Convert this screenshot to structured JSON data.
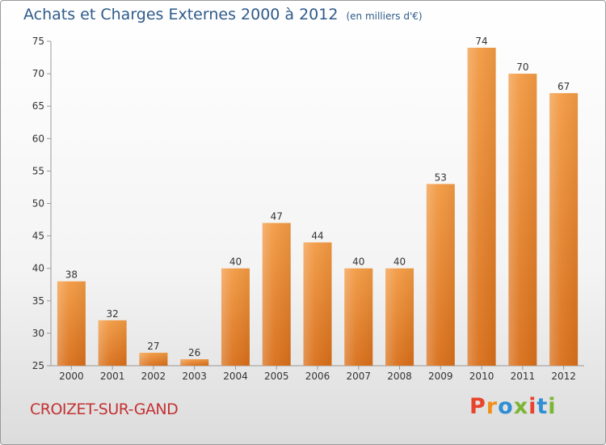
{
  "chart_data": {
    "type": "bar",
    "title": "Achats et Charges Externes 2000 à 2012",
    "subtitle": "(en milliers d'€)",
    "categories": [
      "2000",
      "2001",
      "2002",
      "2003",
      "2004",
      "2005",
      "2006",
      "2007",
      "2008",
      "2009",
      "2010",
      "2011",
      "2012"
    ],
    "values": [
      38,
      32,
      27,
      26,
      40,
      47,
      44,
      40,
      40,
      53,
      74,
      70,
      67
    ],
    "ylim": [
      25,
      75
    ],
    "yticks": [
      25,
      30,
      35,
      40,
      45,
      50,
      55,
      60,
      65,
      70,
      75
    ],
    "xlabel": "",
    "ylabel": "",
    "grid": false,
    "bar_color": "#f29a43",
    "bar_color_dark": "#d86f1a"
  },
  "footer": {
    "commune": "CROIZET-SUR-GAND",
    "logo": "Proxiti",
    "logo_colors": [
      "#e8442d",
      "#f28f1b",
      "#2e8fd4",
      "#7ab534",
      "#e8442d",
      "#2e8fd4",
      "#7ab534"
    ]
  }
}
